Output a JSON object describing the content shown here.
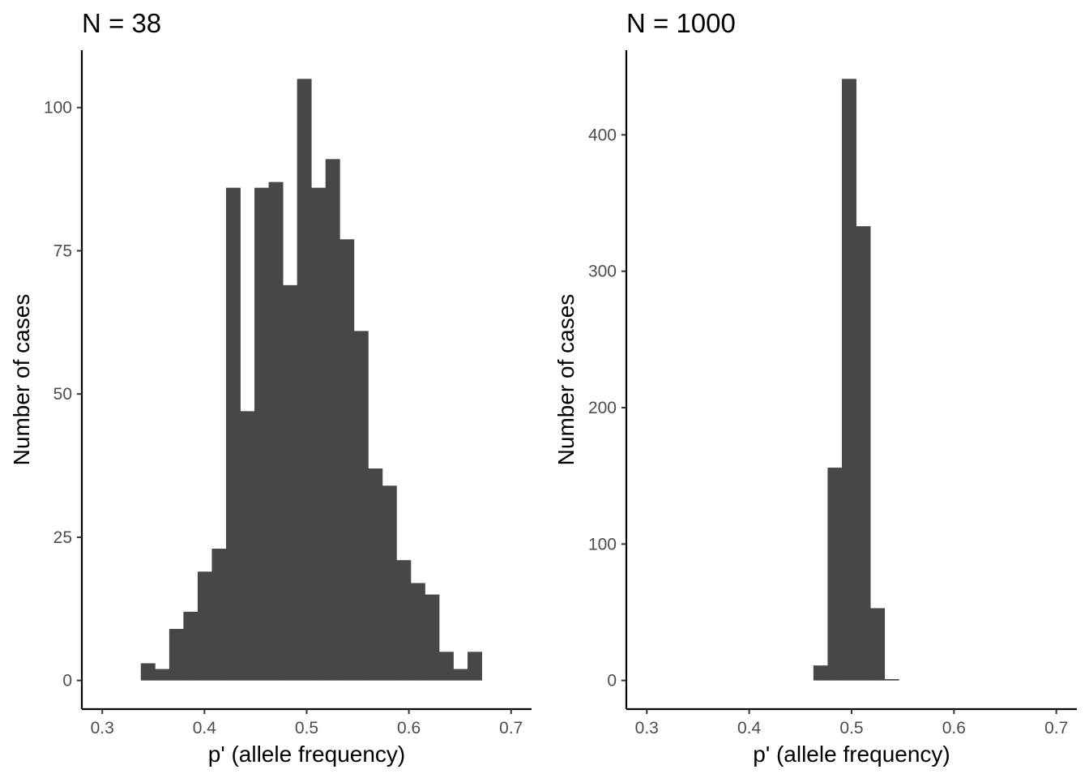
{
  "chart_data": [
    {
      "type": "bar",
      "title": "N = 38",
      "xlabel": "p' (allele frequency)",
      "ylabel": "Number of cases",
      "xlim": [
        0.28,
        0.72
      ],
      "ylim": [
        -5,
        110
      ],
      "x_ticks": [
        0.3,
        0.4,
        0.5,
        0.6,
        0.7
      ],
      "y_ticks": [
        0,
        25,
        50,
        75,
        100
      ],
      "bin_width": 0.0139,
      "bin_start": 0.3377,
      "bar_color": "#474747",
      "grid": false,
      "legend": "none",
      "values": [
        3,
        2,
        9,
        12,
        19,
        23,
        86,
        47,
        86,
        87,
        69,
        105,
        86,
        91,
        77,
        61,
        37,
        34,
        21,
        17,
        15,
        5,
        2,
        5
      ]
    },
    {
      "type": "bar",
      "title": "N = 1000",
      "xlabel": "p' (allele frequency)",
      "ylabel": "Number of cases",
      "xlim": [
        0.28,
        0.72
      ],
      "ylim": [
        -21,
        462
      ],
      "x_ticks": [
        0.3,
        0.4,
        0.5,
        0.6,
        0.7
      ],
      "y_ticks": [
        0,
        100,
        200,
        300,
        400
      ],
      "bin_width": 0.0139,
      "bin_start": 0.4627,
      "bar_color": "#474747",
      "grid": false,
      "legend": "none",
      "values": [
        11,
        156,
        441,
        333,
        53,
        1
      ]
    }
  ]
}
